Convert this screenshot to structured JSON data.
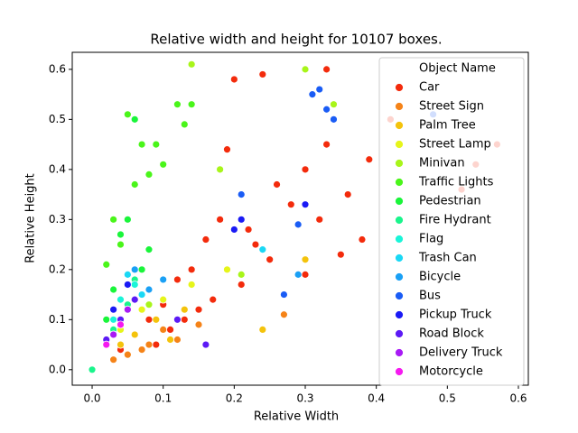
{
  "chart_data": {
    "type": "scatter",
    "title": "Relative width and height for 10107 boxes.",
    "x_label": "Relative Width",
    "y_label": "Relative Height",
    "legend_title": "Object Name",
    "legend": "upper right",
    "xlim": [
      -0.028,
      0.614
    ],
    "ylim": [
      -0.031,
      0.634
    ],
    "xticks": [
      {
        "value": 0,
        "label": "0.0"
      },
      0.1,
      0.2,
      0.3,
      0.4,
      0.5,
      0.6
    ],
    "yticks": [
      {
        "value": 0,
        "label": "0.0"
      },
      0.1,
      0.2,
      0.3,
      0.4,
      0.5,
      0.6
    ],
    "series": [
      {
        "name": "Car",
        "color": "#f32b0c",
        "x": [
          0.54,
          0.57,
          0.52,
          0.42,
          0.39,
          0.38,
          0.36,
          0.33,
          0.32,
          0.3,
          0.28,
          0.26,
          0.24,
          0.22,
          0.2,
          0.18,
          0.16,
          0.14,
          0.12,
          0.1,
          0.08,
          0.06,
          0.04,
          0.3,
          0.25,
          0.21,
          0.17,
          0.13,
          0.19,
          0.23,
          0.35,
          0.33,
          0.15,
          0.11,
          0.09
        ],
        "values": [
          0.41,
          0.45,
          0.36,
          0.5,
          0.42,
          0.26,
          0.35,
          0.6,
          0.3,
          0.4,
          0.33,
          0.37,
          0.59,
          0.28,
          0.58,
          0.3,
          0.26,
          0.2,
          0.18,
          0.13,
          0.1,
          0.07,
          0.04,
          0.19,
          0.22,
          0.17,
          0.14,
          0.1,
          0.44,
          0.25,
          0.23,
          0.45,
          0.12,
          0.08,
          0.05
        ]
      },
      {
        "name": "Street Sign",
        "color": "#f58318",
        "x": [
          0.27,
          0.12,
          0.08,
          0.05,
          0.1,
          0.15,
          0.03,
          0.07
        ],
        "values": [
          0.11,
          0.06,
          0.05,
          0.03,
          0.08,
          0.09,
          0.02,
          0.04
        ]
      },
      {
        "name": "Palm Tree",
        "color": "#f4c30c",
        "x": [
          0.24,
          0.3,
          0.06,
          0.09,
          0.13,
          0.04,
          0.11
        ],
        "values": [
          0.08,
          0.22,
          0.07,
          0.1,
          0.12,
          0.05,
          0.06
        ]
      },
      {
        "name": "Street Lamp",
        "color": "#e6f51a",
        "x": [
          0.04,
          0.07,
          0.1,
          0.14,
          0.02,
          0.19
        ],
        "values": [
          0.08,
          0.12,
          0.14,
          0.17,
          0.06,
          0.2
        ]
      },
      {
        "name": "Minivan",
        "color": "#a8f51a",
        "x": [
          0.3,
          0.18,
          0.34,
          0.14,
          0.21,
          0.08
        ],
        "values": [
          0.6,
          0.4,
          0.53,
          0.61,
          0.19,
          0.13
        ]
      },
      {
        "name": "Traffic Lights",
        "color": "#4af51a",
        "x": [
          0.05,
          0.07,
          0.09,
          0.1,
          0.13,
          0.12,
          0.03,
          0.06,
          0.08,
          0.04,
          0.14,
          0.02
        ],
        "values": [
          0.51,
          0.45,
          0.45,
          0.41,
          0.49,
          0.53,
          0.3,
          0.37,
          0.39,
          0.25,
          0.53,
          0.21
        ]
      },
      {
        "name": "Pedestrian",
        "color": "#1af53a",
        "x": [
          0.06,
          0.05,
          0.04,
          0.08,
          0.03,
          0.07,
          0.02
        ],
        "values": [
          0.5,
          0.3,
          0.27,
          0.24,
          0.16,
          0.2,
          0.1
        ]
      },
      {
        "name": "Fire Hydrant",
        "color": "#1af58c",
        "x": [
          0.0,
          0.02,
          0.03,
          0.05,
          0.06
        ],
        "values": [
          0.0,
          0.05,
          0.08,
          0.13,
          0.18
        ]
      },
      {
        "name": "Flag",
        "color": "#1af5d8",
        "x": [
          0.04,
          0.06,
          0.03
        ],
        "values": [
          0.14,
          0.17,
          0.1
        ]
      },
      {
        "name": "Trash Can",
        "color": "#1ad8f5",
        "x": [
          0.05,
          0.07,
          0.03,
          0.24
        ],
        "values": [
          0.19,
          0.15,
          0.12,
          0.24
        ]
      },
      {
        "name": "Bicycle",
        "color": "#1aa0f5",
        "x": [
          0.06,
          0.1,
          0.29,
          0.08
        ],
        "values": [
          0.2,
          0.18,
          0.19,
          0.16
        ]
      },
      {
        "name": "Bus",
        "color": "#1a5cf5",
        "x": [
          0.31,
          0.33,
          0.32,
          0.48,
          0.34,
          0.27,
          0.29,
          0.21
        ],
        "values": [
          0.55,
          0.52,
          0.56,
          0.51,
          0.5,
          0.15,
          0.29,
          0.35
        ]
      },
      {
        "name": "Pickup Truck",
        "color": "#1a1af5",
        "x": [
          0.03,
          0.05,
          0.2,
          0.3,
          0.21
        ],
        "values": [
          0.12,
          0.17,
          0.28,
          0.33,
          0.3
        ]
      },
      {
        "name": "Road Block",
        "color": "#5c1af5",
        "x": [
          0.02,
          0.04,
          0.16,
          0.12,
          0.06
        ],
        "values": [
          0.06,
          0.1,
          0.05,
          0.1,
          0.14
        ]
      },
      {
        "name": "Delivery Truck",
        "color": "#a81af5",
        "x": [
          0.03,
          0.05
        ],
        "values": [
          0.07,
          0.12
        ]
      },
      {
        "name": "Motorcycle",
        "color": "#f51af0",
        "x": [
          0.02,
          0.04
        ],
        "values": [
          0.05,
          0.09
        ]
      }
    ]
  }
}
